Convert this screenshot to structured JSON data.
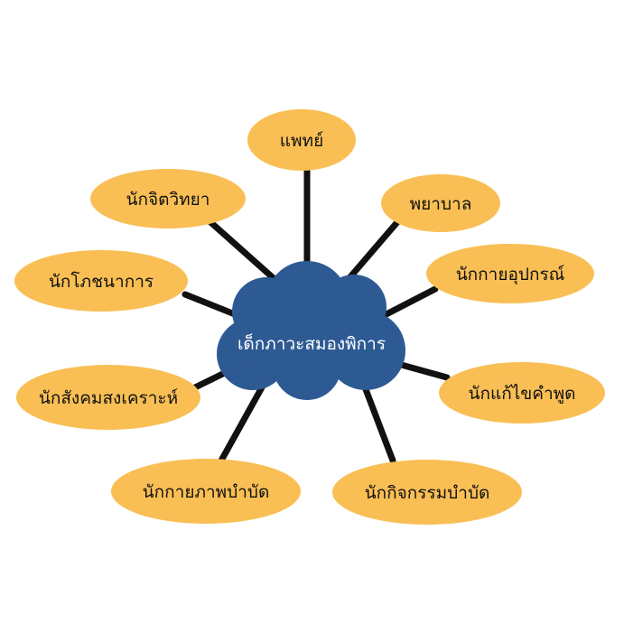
{
  "center": {
    "label": "เด็กภาวะสมองพิการ",
    "color": "#2e5a94"
  },
  "node_color": "#f9bf55",
  "connector_color": "#111111",
  "nodes": [
    {
      "id": "doctor",
      "label": "แพทย์"
    },
    {
      "id": "nurse",
      "label": "พยาบาล"
    },
    {
      "id": "orthotist",
      "label": "นักกายอุปกรณ์"
    },
    {
      "id": "speech-therapist",
      "label": "นักแก้ไขคำพูด"
    },
    {
      "id": "occupational-therapist",
      "label": "นักกิจกรรมบำบัด"
    },
    {
      "id": "physiotherapist",
      "label": "นักกายภาพบำบัด"
    },
    {
      "id": "social-worker",
      "label": "นักสังคมสงเคราะห์"
    },
    {
      "id": "nutritionist",
      "label": "นักโภชนาการ"
    },
    {
      "id": "psychologist",
      "label": "นักจิตวิทยา"
    }
  ]
}
